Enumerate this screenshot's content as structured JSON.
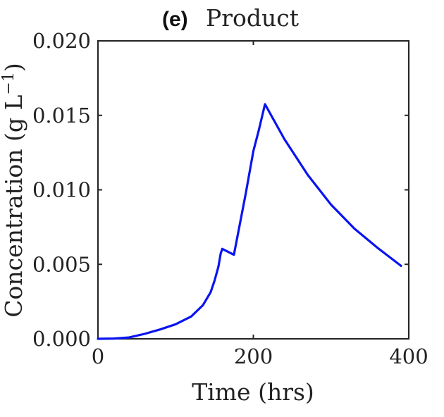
{
  "panel": {
    "letter": "(e)",
    "title": "Product"
  },
  "chart_data": {
    "type": "line",
    "title": "Product",
    "xlabel": "Time (hrs)",
    "ylabel": "Concentration (g L",
    "ylabel_sup": "−1",
    "ylabel_close": ")",
    "xlim": [
      0,
      400
    ],
    "ylim": [
      0,
      0.02
    ],
    "x_ticks": [
      0,
      200,
      400
    ],
    "x_tick_labels": [
      "0",
      "200",
      "400"
    ],
    "y_ticks": [
      0,
      0.005,
      0.01,
      0.015,
      0.02
    ],
    "y_tick_labels": [
      "0.000",
      "0.005",
      "0.010",
      "0.015",
      "0.020"
    ],
    "grid": false,
    "series": [
      {
        "color": "#0a14f0",
        "x": [
          0,
          20,
          40,
          60,
          80,
          100,
          120,
          135,
          145,
          150,
          155,
          158,
          160,
          175,
          190,
          200,
          207,
          215,
          240,
          270,
          300,
          330,
          360,
          390
        ],
        "y": [
          0,
          2e-05,
          9e-05,
          0.00033,
          0.00063,
          0.00098,
          0.0015,
          0.00225,
          0.00313,
          0.0039,
          0.00484,
          0.00574,
          0.00604,
          0.00564,
          0.0097,
          0.0126,
          0.014,
          0.01575,
          0.0134,
          0.011,
          0.009,
          0.0074,
          0.0061,
          0.0049
        ]
      }
    ]
  }
}
